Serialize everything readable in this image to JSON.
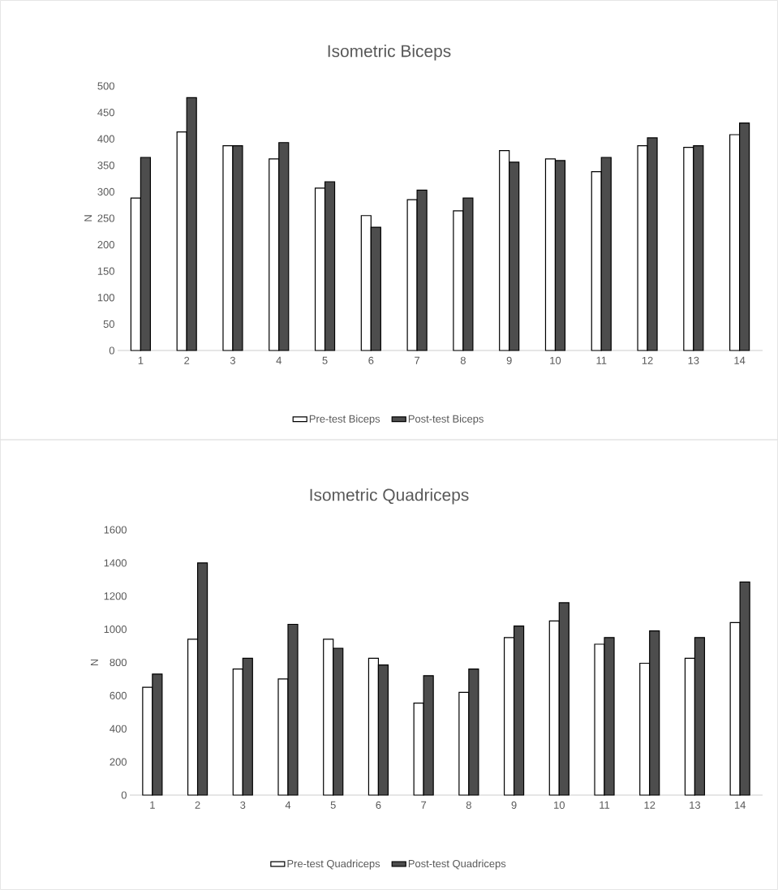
{
  "chart_data": [
    {
      "type": "bar",
      "title": "Isometric Biceps",
      "ylabel": "N",
      "categories": [
        "1",
        "2",
        "3",
        "4",
        "5",
        "6",
        "7",
        "8",
        "9",
        "10",
        "11",
        "12",
        "13",
        "14"
      ],
      "series": [
        {
          "name": "Pre-test Biceps",
          "color": "#ffffff",
          "values": [
            288,
            413,
            387,
            362,
            307,
            255,
            285,
            264,
            378,
            362,
            338,
            387,
            384,
            408
          ]
        },
        {
          "name": "Post-test Biceps",
          "color": "#4d4d4d",
          "values": [
            365,
            478,
            387,
            393,
            319,
            233,
            303,
            288,
            356,
            359,
            365,
            402,
            387,
            430
          ]
        }
      ],
      "ylim": [
        0,
        500
      ],
      "yticks": [
        0,
        50,
        100,
        150,
        200,
        250,
        300,
        350,
        400,
        450,
        500
      ],
      "legend": "bottom"
    },
    {
      "type": "bar",
      "title": "Isometric Quadriceps",
      "ylabel": "N",
      "categories": [
        "1",
        "2",
        "3",
        "4",
        "5",
        "6",
        "7",
        "8",
        "9",
        "10",
        "11",
        "12",
        "13",
        "14"
      ],
      "series": [
        {
          "name": "Pre-test Quadriceps",
          "color": "#ffffff",
          "values": [
            650,
            940,
            760,
            700,
            940,
            825,
            555,
            620,
            950,
            1050,
            910,
            795,
            825,
            1040
          ]
        },
        {
          "name": "Post-test Quadriceps",
          "color": "#4d4d4d",
          "values": [
            730,
            1400,
            825,
            1030,
            885,
            785,
            720,
            760,
            1020,
            1160,
            950,
            990,
            950,
            1285
          ]
        }
      ],
      "ylim": [
        0,
        1600
      ],
      "yticks": [
        0,
        200,
        400,
        600,
        800,
        1000,
        1200,
        1400,
        1600
      ],
      "legend": "bottom"
    }
  ]
}
